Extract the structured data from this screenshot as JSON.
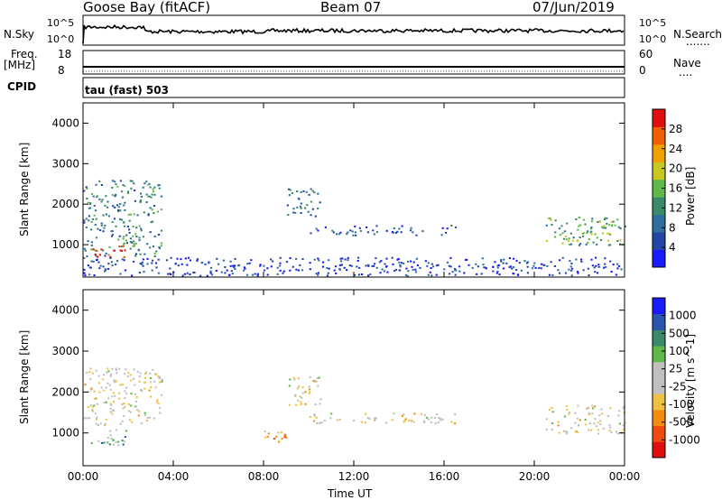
{
  "header": {
    "station": "Goose Bay (fitACF)",
    "beam": "Beam 07",
    "date": "07/Jun/2019"
  },
  "strip_noise": {
    "left_label": "N.Sky",
    "right_label": "N.Search",
    "left_ticks": [
      "10^5",
      "10^0"
    ],
    "right_ticks": [
      "10^5",
      "10^0"
    ],
    "dotted": "......."
  },
  "strip_freq": {
    "left_label_1": "Freq.",
    "left_label_2": "[MHz]",
    "right_label": "Nave",
    "left_ticks": [
      "18",
      "8"
    ],
    "right_ticks": [
      "60",
      "0"
    ],
    "dotted": "...."
  },
  "cpid": {
    "label": "CPID",
    "value": "tau (fast) 503"
  },
  "colors": {
    "power_scale": [
      "#1a1aff",
      "#2546a8",
      "#2f6fa0",
      "#3a8a6a",
      "#5fb84a",
      "#c8c820",
      "#f0a000",
      "#f06000",
      "#e01010"
    ],
    "velocity_scale": [
      "#e01010",
      "#f04a10",
      "#f08c10",
      "#f0c040",
      "#c0c0c0",
      "#c0c0c0",
      "#5fb84a",
      "#3a8a6a",
      "#2a56b0",
      "#1a1aff"
    ]
  },
  "chart_data": [
    {
      "type": "heatmap",
      "name": "power-panel",
      "ylabel": "Slant Range [km]",
      "y_ticks": [
        "1000",
        "2000",
        "3000",
        "4000"
      ],
      "ylim": [
        200,
        4500
      ],
      "colorbar_label": "Power [dB]",
      "colorbar_ticks": [
        "4",
        "8",
        "12",
        "16",
        "20",
        "24",
        "28"
      ],
      "colorbar_range": [
        0,
        32
      ],
      "regions": [
        {
          "t": [
            0.0,
            3.5
          ],
          "r": [
            700,
            2600
          ],
          "level": 0.35
        },
        {
          "t": [
            0.3,
            2.0
          ],
          "r": [
            700,
            1000
          ],
          "level": 0.95
        },
        {
          "t": [
            9.0,
            10.5
          ],
          "r": [
            1700,
            2400
          ],
          "level": 0.3
        },
        {
          "t": [
            10.0,
            16.5
          ],
          "r": [
            1250,
            1500
          ],
          "level": 0.2
        },
        {
          "t": [
            20.5,
            24.0
          ],
          "r": [
            1000,
            1700
          ],
          "level": 0.45
        },
        {
          "t": [
            0.0,
            24.0
          ],
          "r": [
            250,
            700
          ],
          "level": 0.15
        }
      ]
    },
    {
      "type": "heatmap",
      "name": "velocity-panel",
      "xlabel": "Time UT",
      "ylabel": "Slant Range [km]",
      "x_ticks": [
        "00:00",
        "04:00",
        "08:00",
        "12:00",
        "16:00",
        "20:00",
        "00:00"
      ],
      "xlim": [
        0,
        24
      ],
      "y_ticks": [
        "1000",
        "2000",
        "3000",
        "4000"
      ],
      "ylim": [
        200,
        4500
      ],
      "colorbar_label": "Velocity [m s^-1]",
      "colorbar_ticks": [
        "-1000",
        "-500",
        "-100",
        "-25",
        "25",
        "100",
        "500",
        "1000"
      ],
      "regions": [
        {
          "t": [
            0.0,
            3.5
          ],
          "r": [
            1200,
            2600
          ],
          "level": 0.45
        },
        {
          "t": [
            0.3,
            2.0
          ],
          "r": [
            700,
            1100
          ],
          "level": 0.65
        },
        {
          "t": [
            8.0,
            9.0
          ],
          "r": [
            800,
            1100
          ],
          "level": 0.3
        },
        {
          "t": [
            9.0,
            10.5
          ],
          "r": [
            1700,
            2400
          ],
          "level": 0.45
        },
        {
          "t": [
            10.0,
            16.5
          ],
          "r": [
            1250,
            1500
          ],
          "level": 0.45
        },
        {
          "t": [
            20.5,
            24.0
          ],
          "r": [
            1000,
            1700
          ],
          "level": 0.45
        }
      ]
    }
  ]
}
